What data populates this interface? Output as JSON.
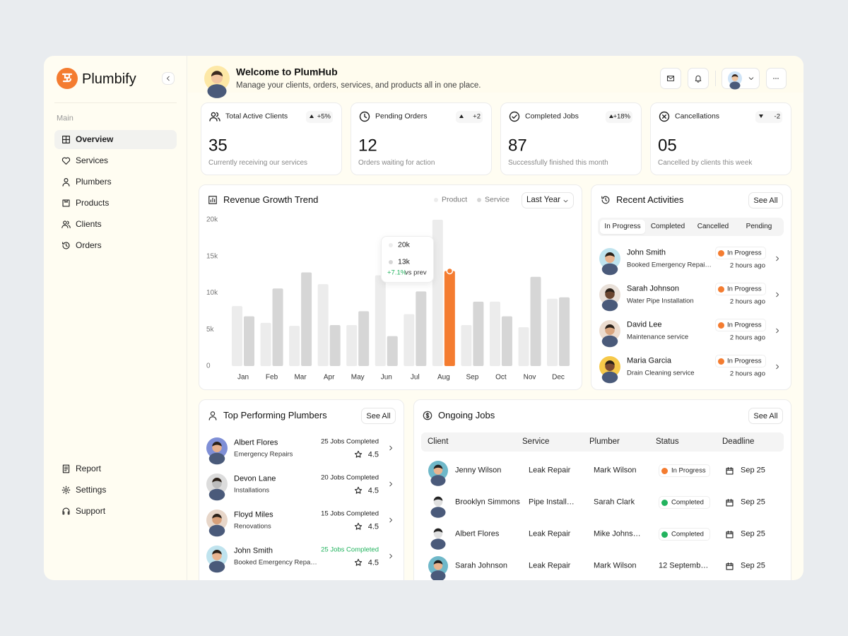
{
  "brand": "Plumbify",
  "nav": {
    "section": "Main",
    "items": [
      "Overview",
      "Services",
      "Plumbers",
      "Products",
      "Clients",
      "Orders"
    ],
    "bottom": [
      "Report",
      "Settings",
      "Support"
    ]
  },
  "header": {
    "title": "Welcome to PlumHub",
    "subtitle": "Manage your clients, orders, services, and products all in one place."
  },
  "stats": [
    {
      "label": "Total Active Clients",
      "change": "+5%",
      "value": "35",
      "note": "Currently receiving our services"
    },
    {
      "label": "Pending Orders",
      "change": "+2",
      "value": "12",
      "note": "Orders waiting for action"
    },
    {
      "label": "Completed Jobs",
      "change": "+18%",
      "value": "87",
      "note": "Successfully finished this month"
    },
    {
      "label": "Cancellations",
      "change": "-2",
      "value": "05",
      "note": "Cancelled by clients this week"
    }
  ],
  "chart_data": {
    "type": "bar",
    "title": "Revenue Growth Trend",
    "filter": "Last Year",
    "categories": [
      "Jan",
      "Feb",
      "Mar",
      "Apr",
      "May",
      "Jun",
      "Jul",
      "Aug",
      "Sep",
      "Oct",
      "Nov",
      "Dec"
    ],
    "series": [
      {
        "name": "Product",
        "color": "#ececec",
        "values": [
          8200,
          5900,
          5500,
          11200,
          5600,
          12400,
          7100,
          20000,
          5600,
          8800,
          5300,
          9200
        ]
      },
      {
        "name": "Service",
        "color": "#d6d6d6",
        "values": [
          6800,
          10600,
          12800,
          5600,
          7500,
          4100,
          10200,
          13000,
          8800,
          6800,
          12200,
          9400
        ]
      }
    ],
    "ylim": [
      0,
      20000
    ],
    "yticks": [
      {
        "value": 0,
        "label": "0"
      },
      {
        "value": 5000,
        "label": "5k"
      },
      {
        "value": 10000,
        "label": "10k"
      },
      {
        "value": 15000,
        "label": "15k"
      },
      {
        "value": 20000,
        "label": "20k"
      }
    ],
    "grid": false,
    "highlight": {
      "series": 1,
      "index": 7,
      "color": "#f47c30"
    },
    "tooltip": {
      "items": [
        "20k",
        "13k"
      ],
      "change": "+7.1%",
      "suffix": "vs prev"
    }
  },
  "activities": {
    "title": "Recent Activities",
    "action": "See All",
    "tabs": [
      "In Progress",
      "Completed",
      "Cancelled",
      "Pending"
    ],
    "items": [
      {
        "name": "John Smith",
        "task": "Booked Emergency Repai…",
        "status": "In Progress",
        "time": "2 hours ago"
      },
      {
        "name": "Sarah Johnson",
        "task": "Water Pipe Installation",
        "status": "In Progress",
        "time": "2 hours ago"
      },
      {
        "name": "David Lee",
        "task": "Maintenance service",
        "status": "In Progress",
        "time": "2 hours ago"
      },
      {
        "name": "Maria Garcia",
        "task": "Drain Cleaning service",
        "status": "In Progress",
        "time": "2 hours ago"
      }
    ]
  },
  "plumbers": {
    "title": "Top Performing Plumbers",
    "action": "See All",
    "items": [
      {
        "name": "Albert Flores",
        "specialty": "Emergency Repairs",
        "jobs": "25 Jobs Completed",
        "rating": "4.5",
        "color": "#222222"
      },
      {
        "name": "Devon Lane",
        "specialty": "Installations",
        "jobs": "20 Jobs Completed",
        "rating": "4.5",
        "color": "#222222"
      },
      {
        "name": "Floyd Miles",
        "specialty": "Renovations",
        "jobs": "15 Jobs Completed",
        "rating": "4.5",
        "color": "#222222"
      },
      {
        "name": "John Smith",
        "specialty": "Booked Emergency Repa…",
        "jobs": "25 Jobs Completed",
        "rating": "4.5",
        "color": "#22b35e"
      }
    ]
  },
  "jobs": {
    "title": "Ongoing Jobs",
    "action": "See All",
    "columns": [
      "Client",
      "Service",
      "Plumber",
      "Status",
      "Deadline"
    ],
    "rows": [
      {
        "client": "Jenny Wilson",
        "service": "Leak Repair",
        "plumber": "Mark Wilson",
        "status": "In Progress",
        "status_color": "#f47c30",
        "deadline": "Sep 25"
      },
      {
        "client": "Brooklyn Simmons",
        "service": "Pipe Install…",
        "plumber": "Sarah Clark",
        "status": "Completed",
        "status_color": "#22b35e",
        "deadline": "Sep 25"
      },
      {
        "client": "Albert Flores",
        "service": "Leak Repair",
        "plumber": "Mike Johns…",
        "status": "Completed",
        "status_color": "#22b35e",
        "deadline": "Sep 25"
      },
      {
        "client": "Sarah Johnson",
        "service": "Leak Repair",
        "plumber": "Mark Wilson",
        "status": "12 Septemb…",
        "status_color": null,
        "deadline": "Sep 25"
      }
    ]
  }
}
